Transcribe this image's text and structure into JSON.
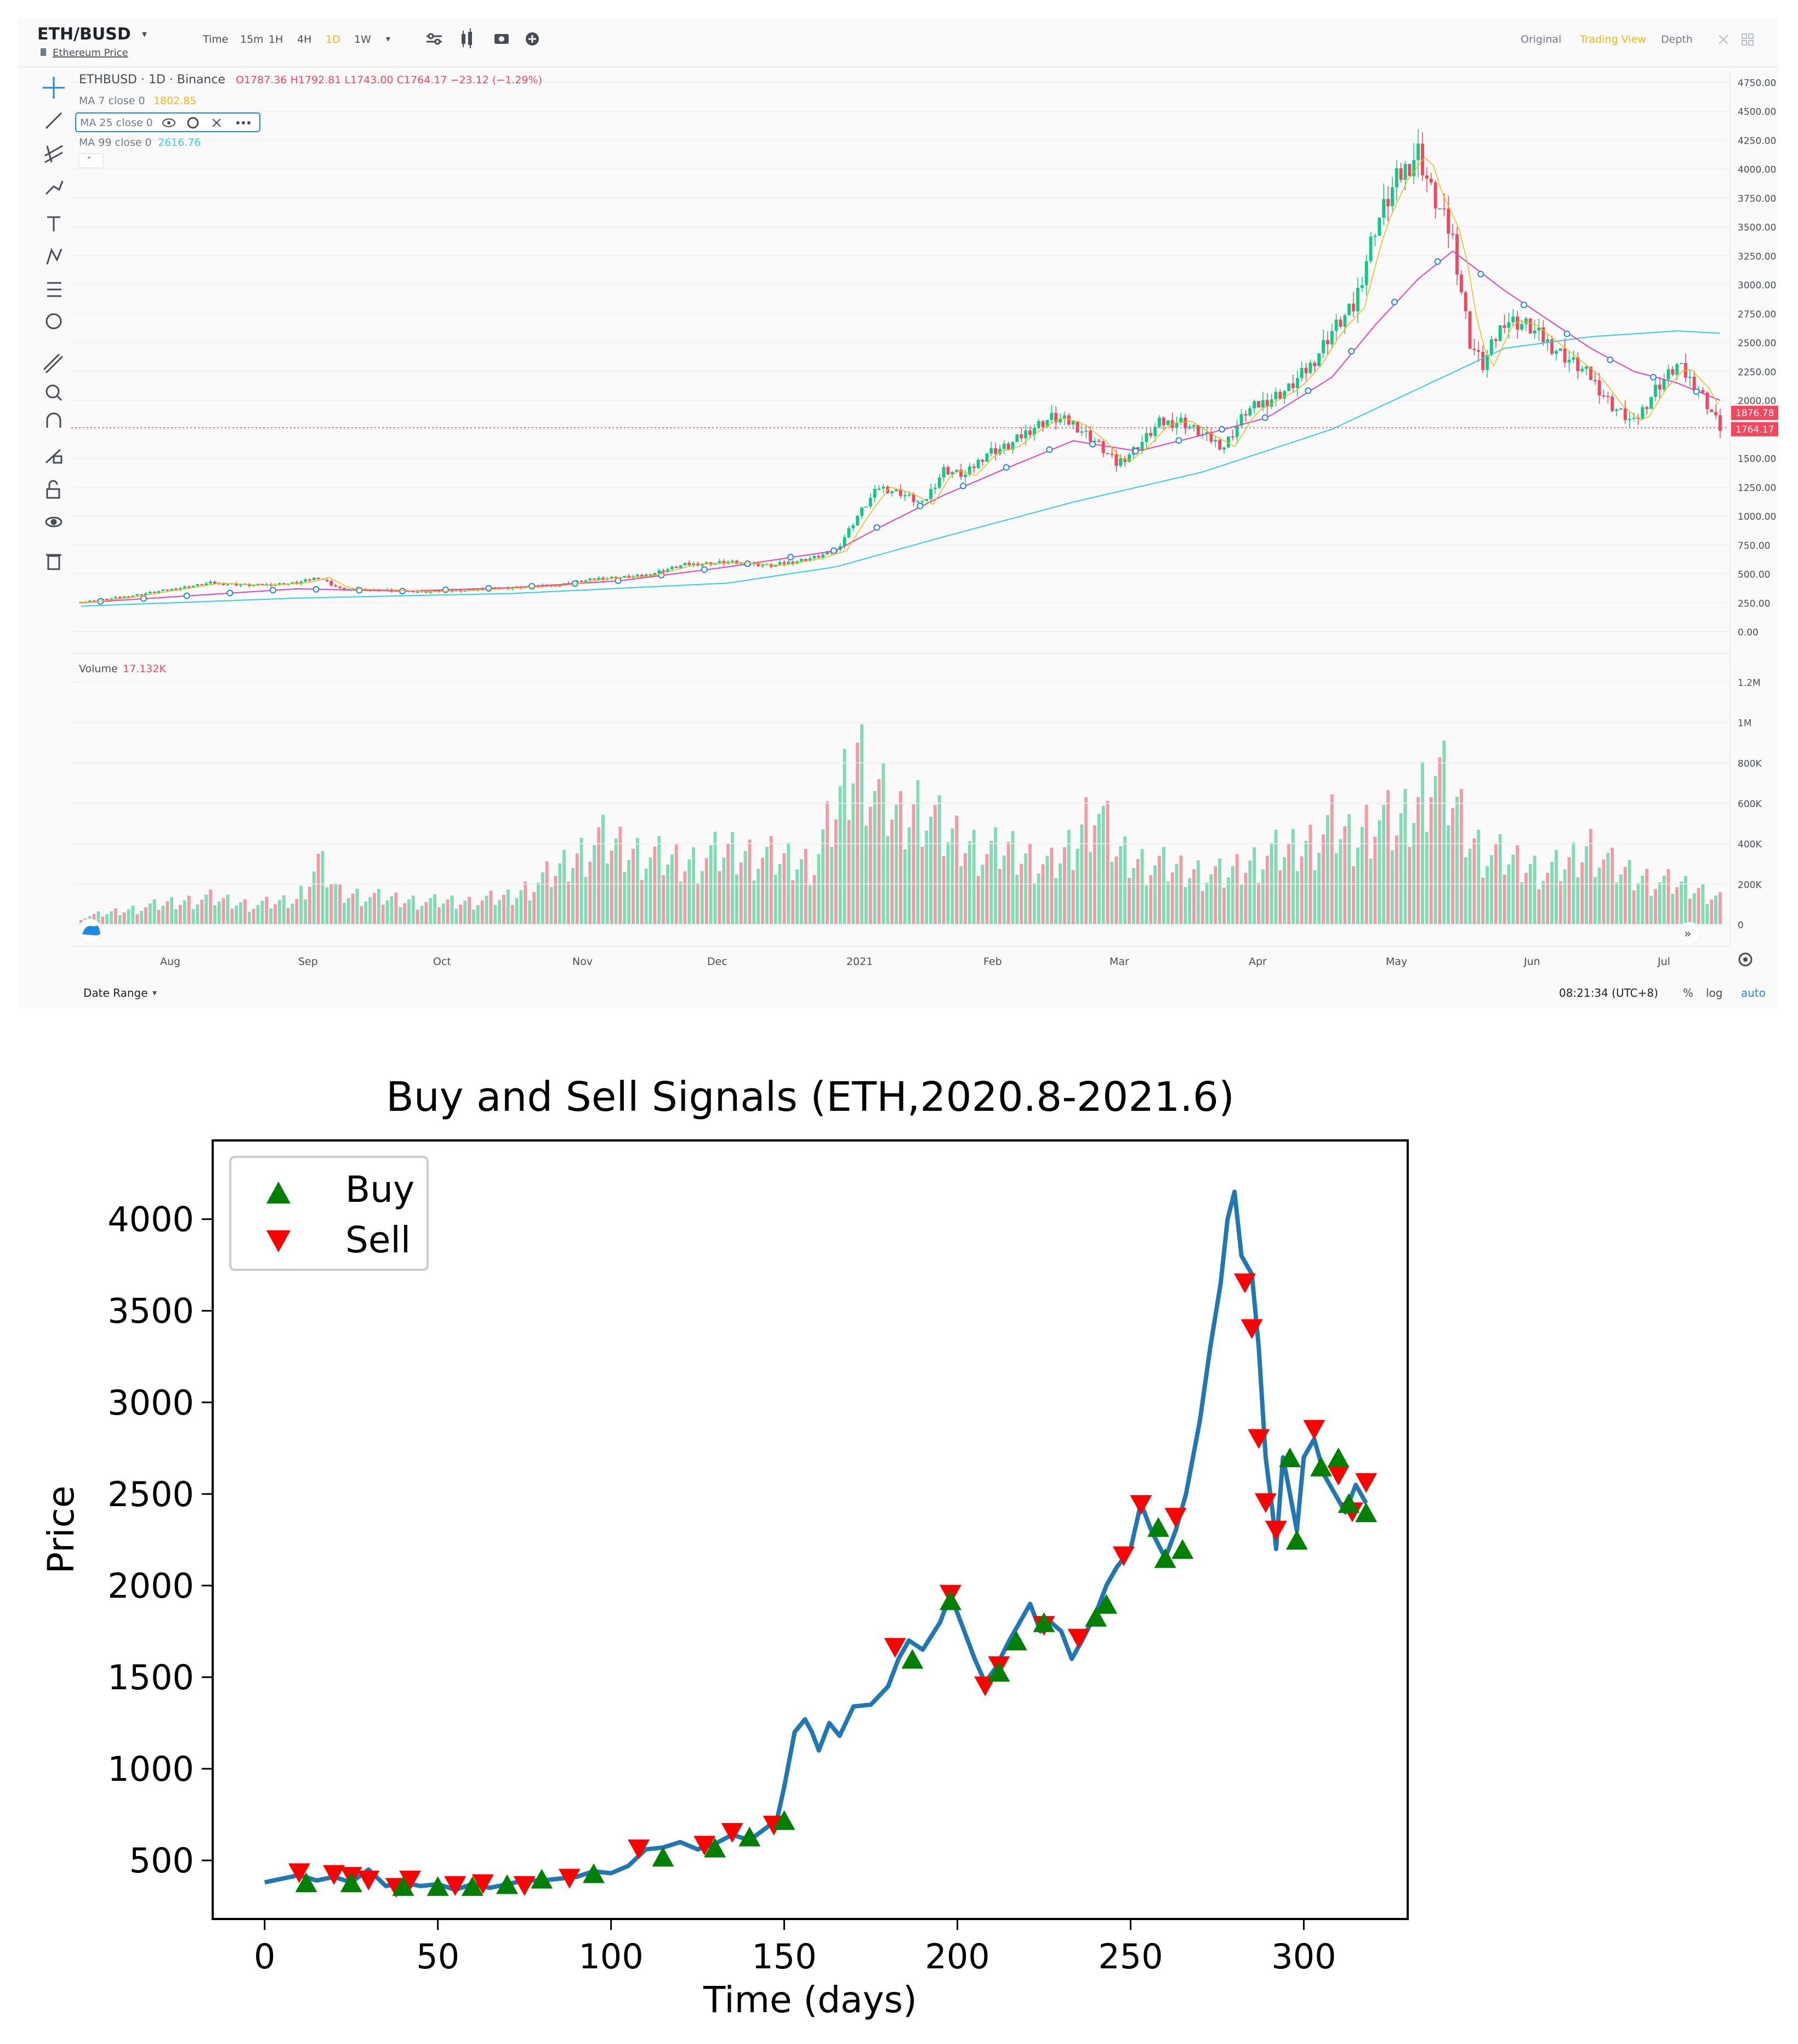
{
  "tradingview": {
    "symbol": "ETH/BUSD",
    "symbol_subtitle": "Ethereum Price",
    "timeframes": [
      "Time",
      "15m",
      "1H",
      "4H",
      "1D",
      "1W"
    ],
    "active_timeframe": "1D",
    "view_modes": [
      "Original",
      "Trading View",
      "Depth"
    ],
    "active_view": "Trading View",
    "legend": {
      "pair": "ETHBUSD · 1D · Binance",
      "ohlc": "O1787.36 H1792.81 L1743.00 C1764.17 −23.12 (−1.29%)",
      "ma7_label": "MA 7 close 0",
      "ma7_value": "1802.85",
      "ma25_label": "MA 25 close 0",
      "ma99_label": "MA 99 close 0",
      "ma99_value": "2616.76"
    },
    "price_axis": [
      "4750.00",
      "4500.00",
      "4250.00",
      "4000.00",
      "3750.00",
      "3500.00",
      "3250.00",
      "3000.00",
      "2750.00",
      "2500.00",
      "2250.00",
      "2000.00",
      "1750.00",
      "1500.00",
      "1250.00",
      "1000.00",
      "750.00",
      "500.00",
      "250.00",
      "0.00"
    ],
    "price_tags": [
      "1876.78",
      "1764.17"
    ],
    "volume_label": "Volume",
    "volume_value": "17.132K",
    "volume_axis": [
      "1.2M",
      "1M",
      "800K",
      "600K",
      "400K",
      "200K",
      "0"
    ],
    "months": [
      "Aug",
      "Sep",
      "Oct",
      "Nov",
      "Dec",
      "2021",
      "Feb",
      "Mar",
      "Apr",
      "May",
      "Jun",
      "Jul"
    ],
    "date_range": "Date Range",
    "clock": "08:21:34 (UTC+8)",
    "scale_options": [
      "%",
      "log",
      "auto"
    ],
    "colors": {
      "up": "#0ecb81",
      "down": "#f6465d",
      "ma7": "#f0b90b",
      "ma25": "#eb40b5",
      "ma99": "#31d0e0"
    },
    "price_series": [
      [
        0,
        255
      ],
      [
        10,
        300
      ],
      [
        20,
        360
      ],
      [
        30,
        420
      ],
      [
        40,
        400
      ],
      [
        50,
        420
      ],
      [
        55,
        470
      ],
      [
        60,
        370
      ],
      [
        70,
        360
      ],
      [
        80,
        345
      ],
      [
        90,
        360
      ],
      [
        100,
        380
      ],
      [
        110,
        400
      ],
      [
        120,
        460
      ],
      [
        130,
        480
      ],
      [
        140,
        580
      ],
      [
        150,
        600
      ],
      [
        160,
        570
      ],
      [
        170,
        640
      ],
      [
        175,
        700
      ],
      [
        180,
        1000
      ],
      [
        185,
        1250
      ],
      [
        190,
        1200
      ],
      [
        195,
        1100
      ],
      [
        200,
        1400
      ],
      [
        205,
        1350
      ],
      [
        210,
        1550
      ],
      [
        215,
        1600
      ],
      [
        220,
        1750
      ],
      [
        225,
        1850
      ],
      [
        230,
        1800
      ],
      [
        235,
        1650
      ],
      [
        240,
        1450
      ],
      [
        245,
        1600
      ],
      [
        250,
        1800
      ],
      [
        255,
        1820
      ],
      [
        260,
        1700
      ],
      [
        265,
        1600
      ],
      [
        270,
        1900
      ],
      [
        275,
        2000
      ],
      [
        280,
        2100
      ],
      [
        285,
        2300
      ],
      [
        290,
        2600
      ],
      [
        295,
        2800
      ],
      [
        300,
        3500
      ],
      [
        305,
        3900
      ],
      [
        310,
        4150
      ],
      [
        313,
        3800
      ],
      [
        318,
        3400
      ],
      [
        322,
        2500
      ],
      [
        325,
        2300
      ],
      [
        330,
        2700
      ],
      [
        335,
        2650
      ],
      [
        340,
        2500
      ],
      [
        345,
        2350
      ],
      [
        350,
        2200
      ],
      [
        355,
        1950
      ],
      [
        360,
        1800
      ],
      [
        365,
        2100
      ],
      [
        370,
        2300
      ],
      [
        375,
        2100
      ],
      [
        380,
        1764
      ]
    ],
    "volume_series": [
      [
        0,
        40
      ],
      [
        10,
        80
      ],
      [
        20,
        120
      ],
      [
        30,
        150
      ],
      [
        40,
        110
      ],
      [
        50,
        140
      ],
      [
        55,
        350
      ],
      [
        60,
        180
      ],
      [
        70,
        150
      ],
      [
        80,
        130
      ],
      [
        90,
        130
      ],
      [
        100,
        160
      ],
      [
        110,
        300
      ],
      [
        120,
        480
      ],
      [
        130,
        400
      ],
      [
        140,
        350
      ],
      [
        150,
        420
      ],
      [
        160,
        380
      ],
      [
        170,
        350
      ],
      [
        175,
        650
      ],
      [
        180,
        1000
      ],
      [
        185,
        720
      ],
      [
        190,
        600
      ],
      [
        195,
        700
      ],
      [
        200,
        520
      ],
      [
        205,
        470
      ],
      [
        210,
        410
      ],
      [
        215,
        430
      ],
      [
        220,
        380
      ],
      [
        225,
        330
      ],
      [
        230,
        450
      ],
      [
        235,
        700
      ],
      [
        240,
        420
      ],
      [
        245,
        360
      ],
      [
        250,
        340
      ],
      [
        255,
        310
      ],
      [
        260,
        300
      ],
      [
        265,
        280
      ],
      [
        270,
        340
      ],
      [
        275,
        400
      ],
      [
        280,
        420
      ],
      [
        285,
        470
      ],
      [
        290,
        560
      ],
      [
        295,
        480
      ],
      [
        300,
        620
      ],
      [
        305,
        550
      ],
      [
        310,
        700
      ],
      [
        313,
        900
      ],
      [
        318,
        720
      ],
      [
        322,
        500
      ],
      [
        325,
        420
      ],
      [
        330,
        380
      ],
      [
        335,
        340
      ],
      [
        340,
        300
      ],
      [
        345,
        350
      ],
      [
        350,
        450
      ],
      [
        355,
        330
      ],
      [
        360,
        280
      ],
      [
        365,
        250
      ],
      [
        370,
        230
      ],
      [
        375,
        200
      ],
      [
        380,
        160
      ]
    ],
    "ma25_series": [
      [
        0,
        250
      ],
      [
        25,
        310
      ],
      [
        50,
        370
      ],
      [
        75,
        350
      ],
      [
        100,
        380
      ],
      [
        125,
        440
      ],
      [
        150,
        560
      ],
      [
        175,
        700
      ],
      [
        185,
        900
      ],
      [
        200,
        1180
      ],
      [
        215,
        1420
      ],
      [
        230,
        1650
      ],
      [
        245,
        1560
      ],
      [
        260,
        1700
      ],
      [
        275,
        1850
      ],
      [
        290,
        2200
      ],
      [
        300,
        2650
      ],
      [
        310,
        3050
      ],
      [
        318,
        3290
      ],
      [
        330,
        2950
      ],
      [
        340,
        2700
      ],
      [
        350,
        2450
      ],
      [
        360,
        2250
      ],
      [
        370,
        2150
      ],
      [
        380,
        2000
      ]
    ],
    "ma99_series": [
      [
        0,
        220
      ],
      [
        50,
        290
      ],
      [
        100,
        330
      ],
      [
        150,
        420
      ],
      [
        175,
        560
      ],
      [
        200,
        820
      ],
      [
        230,
        1120
      ],
      [
        260,
        1380
      ],
      [
        290,
        1750
      ],
      [
        310,
        2100
      ],
      [
        330,
        2450
      ],
      [
        350,
        2550
      ],
      [
        370,
        2600
      ],
      [
        380,
        2580
      ]
    ]
  },
  "chart_data": {
    "type": "line",
    "title": "Buy and Sell Signals (ETH,2020.8-2021.6)",
    "xlabel": "Time (days)",
    "ylabel": "Price",
    "xlim": [
      -15,
      330
    ],
    "ylim": [
      180,
      4430
    ],
    "xticks": [
      0,
      50,
      100,
      150,
      200,
      250,
      300
    ],
    "yticks": [
      500,
      1000,
      1500,
      2000,
      2500,
      3000,
      3500,
      4000
    ],
    "legend": [
      "Buy",
      "Sell"
    ],
    "legend_position": "top-left",
    "line_color": "#1f77b4",
    "buy_color": "#008000",
    "sell_color": "#ff0000",
    "price": [
      [
        0,
        380
      ],
      [
        5,
        400
      ],
      [
        10,
        420
      ],
      [
        15,
        390
      ],
      [
        20,
        410
      ],
      [
        25,
        380
      ],
      [
        30,
        450
      ],
      [
        35,
        360
      ],
      [
        40,
        380
      ],
      [
        45,
        360
      ],
      [
        50,
        370
      ],
      [
        55,
        340
      ],
      [
        60,
        370
      ],
      [
        65,
        350
      ],
      [
        70,
        370
      ],
      [
        75,
        390
      ],
      [
        80,
        390
      ],
      [
        85,
        400
      ],
      [
        90,
        410
      ],
      [
        95,
        440
      ],
      [
        100,
        430
      ],
      [
        105,
        470
      ],
      [
        110,
        560
      ],
      [
        115,
        570
      ],
      [
        120,
        600
      ],
      [
        125,
        560
      ],
      [
        130,
        590
      ],
      [
        135,
        640
      ],
      [
        140,
        610
      ],
      [
        145,
        680
      ],
      [
        148,
        730
      ],
      [
        150,
        900
      ],
      [
        153,
        1200
      ],
      [
        156,
        1270
      ],
      [
        158,
        1200
      ],
      [
        160,
        1100
      ],
      [
        163,
        1250
      ],
      [
        166,
        1180
      ],
      [
        170,
        1340
      ],
      [
        175,
        1350
      ],
      [
        180,
        1450
      ],
      [
        183,
        1600
      ],
      [
        186,
        1700
      ],
      [
        190,
        1650
      ],
      [
        195,
        1800
      ],
      [
        198,
        1950
      ],
      [
        201,
        1800
      ],
      [
        205,
        1600
      ],
      [
        208,
        1470
      ],
      [
        211,
        1550
      ],
      [
        215,
        1700
      ],
      [
        218,
        1800
      ],
      [
        221,
        1900
      ],
      [
        224,
        1750
      ],
      [
        227,
        1800
      ],
      [
        230,
        1750
      ],
      [
        233,
        1600
      ],
      [
        236,
        1700
      ],
      [
        240,
        1850
      ],
      [
        243,
        2000
      ],
      [
        246,
        2100
      ],
      [
        250,
        2200
      ],
      [
        253,
        2450
      ],
      [
        256,
        2300
      ],
      [
        260,
        2150
      ],
      [
        263,
        2300
      ],
      [
        266,
        2500
      ],
      [
        270,
        2900
      ],
      [
        273,
        3300
      ],
      [
        276,
        3650
      ],
      [
        278,
        4000
      ],
      [
        280,
        4150
      ],
      [
        282,
        3800
      ],
      [
        285,
        3700
      ],
      [
        287,
        3300
      ],
      [
        289,
        2700
      ],
      [
        291,
        2400
      ],
      [
        292,
        2200
      ],
      [
        294,
        2700
      ],
      [
        296,
        2500
      ],
      [
        298,
        2300
      ],
      [
        300,
        2700
      ],
      [
        303,
        2800
      ],
      [
        306,
        2600
      ],
      [
        309,
        2500
      ],
      [
        312,
        2400
      ],
      [
        315,
        2550
      ],
      [
        318,
        2450
      ]
    ],
    "buy": [
      [
        12,
        380
      ],
      [
        25,
        380
      ],
      [
        40,
        360
      ],
      [
        50,
        360
      ],
      [
        60,
        360
      ],
      [
        70,
        370
      ],
      [
        80,
        400
      ],
      [
        95,
        430
      ],
      [
        115,
        520
      ],
      [
        130,
        570
      ],
      [
        140,
        630
      ],
      [
        150,
        720
      ],
      [
        187,
        1600
      ],
      [
        198,
        1920
      ],
      [
        212,
        1530
      ],
      [
        217,
        1700
      ],
      [
        225,
        1800
      ],
      [
        240,
        1830
      ],
      [
        243,
        1900
      ],
      [
        258,
        2320
      ],
      [
        260,
        2150
      ],
      [
        265,
        2200
      ],
      [
        296,
        2700
      ],
      [
        298,
        2250
      ],
      [
        305,
        2650
      ],
      [
        310,
        2700
      ],
      [
        313,
        2450
      ],
      [
        318,
        2400
      ]
    ],
    "sell": [
      [
        10,
        430
      ],
      [
        20,
        420
      ],
      [
        25,
        410
      ],
      [
        30,
        390
      ],
      [
        38,
        350
      ],
      [
        42,
        390
      ],
      [
        55,
        360
      ],
      [
        63,
        370
      ],
      [
        75,
        360
      ],
      [
        88,
        400
      ],
      [
        108,
        560
      ],
      [
        127,
        580
      ],
      [
        135,
        650
      ],
      [
        147,
        690
      ],
      [
        182,
        1660
      ],
      [
        198,
        1950
      ],
      [
        208,
        1450
      ],
      [
        212,
        1560
      ],
      [
        225,
        1780
      ],
      [
        235,
        1710
      ],
      [
        248,
        2160
      ],
      [
        253,
        2440
      ],
      [
        263,
        2370
      ],
      [
        283,
        3650
      ],
      [
        285,
        3400
      ],
      [
        287,
        2800
      ],
      [
        289,
        2450
      ],
      [
        292,
        2300
      ],
      [
        303,
        2850
      ],
      [
        310,
        2600
      ],
      [
        314,
        2400
      ],
      [
        318,
        2560
      ]
    ]
  }
}
